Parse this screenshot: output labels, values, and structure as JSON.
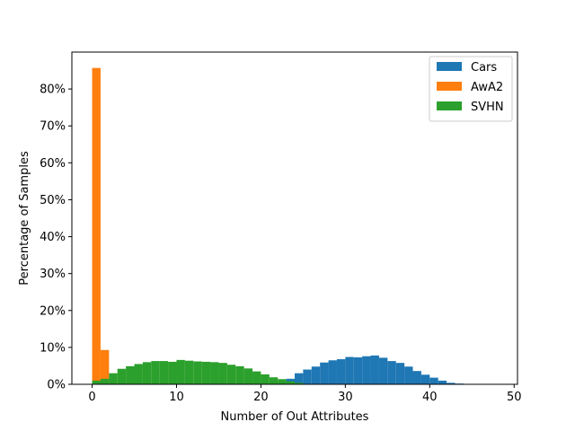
{
  "chart_data": {
    "type": "bar",
    "xlabel": "Number of Out Attributes",
    "ylabel": "Percentage of Samples",
    "xlim": [
      -2.4,
      50.4
    ],
    "ylim": [
      0,
      0.9
    ],
    "bin_width": 1,
    "x_ticks": [
      0,
      10,
      20,
      30,
      40,
      50
    ],
    "x_tick_labels": [
      "0",
      "10",
      "20",
      "30",
      "40",
      "50"
    ],
    "y_ticks": [
      0,
      0.1,
      0.2,
      0.3,
      0.4,
      0.5,
      0.6,
      0.7,
      0.8
    ],
    "y_tick_labels": [
      "0%",
      "10%",
      "20%",
      "30%",
      "40%",
      "50%",
      "60%",
      "70%",
      "80%"
    ],
    "legend_position": "top-right",
    "series": [
      {
        "name": "Cars",
        "color": "#1f77b4",
        "bins": [
          21,
          22,
          23,
          24,
          25,
          26,
          27,
          28,
          29,
          30,
          31,
          32,
          33,
          34,
          35,
          36,
          37,
          38,
          39,
          40,
          41,
          42,
          43
        ],
        "values": [
          0.002,
          0.007,
          0.015,
          0.03,
          0.04,
          0.048,
          0.059,
          0.065,
          0.068,
          0.074,
          0.073,
          0.076,
          0.078,
          0.072,
          0.063,
          0.058,
          0.048,
          0.036,
          0.026,
          0.018,
          0.01,
          0.004,
          0.002
        ]
      },
      {
        "name": "AwA2",
        "color": "#ff7f0e",
        "bins": [
          0,
          1,
          2
        ],
        "values": [
          0.857,
          0.093,
          0.007
        ]
      },
      {
        "name": "SVHN",
        "color": "#2ca02c",
        "bins": [
          0,
          1,
          2,
          3,
          4,
          5,
          6,
          7,
          8,
          9,
          10,
          11,
          12,
          13,
          14,
          15,
          16,
          17,
          18,
          19,
          20,
          21,
          22,
          23,
          24
        ],
        "values": [
          0.01,
          0.015,
          0.03,
          0.042,
          0.049,
          0.055,
          0.06,
          0.063,
          0.063,
          0.061,
          0.066,
          0.064,
          0.062,
          0.061,
          0.06,
          0.058,
          0.053,
          0.049,
          0.043,
          0.035,
          0.027,
          0.019,
          0.014,
          0.008,
          0.004
        ]
      }
    ]
  }
}
